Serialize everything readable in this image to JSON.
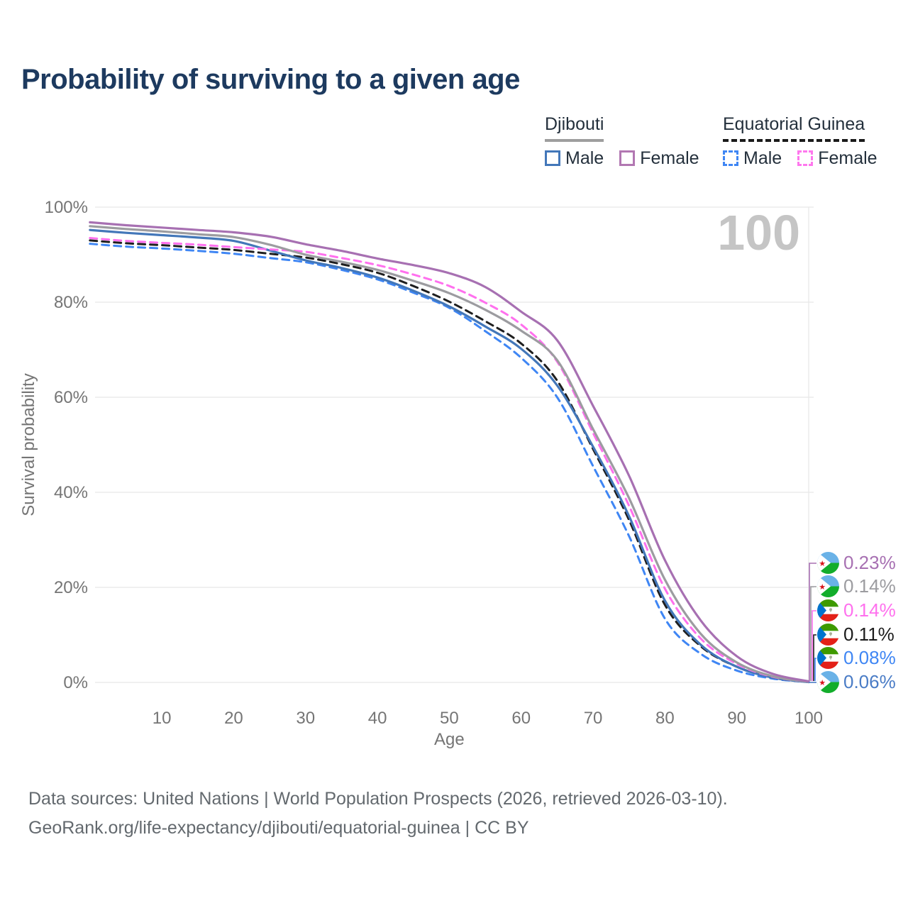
{
  "title": "Probability of surviving to a given age",
  "age_counter": "100",
  "legend": {
    "groups": [
      {
        "name": "Djibouti",
        "line_style": "solid",
        "underline_color": "#9e9e9e",
        "items": [
          {
            "label": "Male",
            "color": "#4377b9"
          },
          {
            "label": "Female",
            "color": "#b277b2"
          }
        ]
      },
      {
        "name": "Equatorial Guinea",
        "line_style": "dashed",
        "underline_color": "#1b1b1b",
        "items": [
          {
            "label": "Male",
            "color": "#3f86f4"
          },
          {
            "label": "Female",
            "color": "#ff77ee"
          }
        ]
      }
    ]
  },
  "chart_data": {
    "type": "line",
    "title": "Probability of surviving to a given age",
    "xlabel": "Age",
    "ylabel": "Survival probability",
    "xlim": [
      0,
      100
    ],
    "ylim": [
      0,
      100
    ],
    "grid": "horizontal",
    "legend_position": "top-right",
    "x_ticks": [
      10,
      20,
      30,
      40,
      50,
      60,
      70,
      80,
      90,
      100
    ],
    "y_ticks": [
      {
        "value": 0,
        "label": "0%"
      },
      {
        "value": 20,
        "label": "20%"
      },
      {
        "value": 40,
        "label": "40%"
      },
      {
        "value": 60,
        "label": "60%"
      },
      {
        "value": 80,
        "label": "80%"
      },
      {
        "value": 100,
        "label": "100%"
      }
    ],
    "x": [
      0,
      5,
      10,
      15,
      20,
      25,
      30,
      35,
      40,
      45,
      50,
      55,
      60,
      65,
      70,
      75,
      80,
      85,
      90,
      95,
      100
    ],
    "series": [
      {
        "name": "Equatorial Guinea Male",
        "country": "Equatorial Guinea",
        "sex": "Male",
        "color": "#3f86f4",
        "dash": true,
        "values": [
          92.3,
          91.7,
          91.3,
          90.8,
          90.2,
          89.3,
          88.4,
          86.8,
          84.8,
          82.0,
          78.8,
          73.9,
          68.3,
          60.0,
          45.5,
          30.8,
          13.4,
          6.0,
          2.5,
          0.8,
          0.08
        ],
        "end_label": "0.08%"
      },
      {
        "name": "Equatorial Guinea All",
        "country": "Equatorial Guinea",
        "sex": "Both",
        "color": "#1e1e1e",
        "dash": true,
        "values": [
          93.0,
          92.4,
          92.0,
          91.5,
          91.0,
          90.2,
          89.4,
          88.0,
          86.2,
          83.4,
          80.1,
          76.0,
          71.3,
          63.5,
          49.1,
          34.2,
          16.3,
          7.6,
          3.3,
          1.0,
          0.11
        ],
        "end_label": "0.11%"
      },
      {
        "name": "Djibouti Male",
        "country": "Djibouti",
        "sex": "Male",
        "color": "#4377b9",
        "dash": false,
        "values": [
          95.2,
          94.6,
          94.1,
          93.6,
          92.9,
          90.9,
          88.8,
          87.2,
          85.2,
          82.4,
          79.1,
          74.9,
          70.2,
          62.5,
          49.6,
          35.0,
          17.2,
          7.9,
          3.3,
          1.0,
          0.06
        ],
        "end_label": "0.06%"
      },
      {
        "name": "Equatorial Guinea Female",
        "country": "Equatorial Guinea",
        "sex": "Female",
        "color": "#ff70ee",
        "dash": true,
        "values": [
          93.5,
          92.9,
          92.5,
          92.1,
          91.6,
          91.1,
          90.6,
          89.3,
          87.8,
          85.8,
          83.4,
          79.9,
          75.3,
          67.5,
          52.5,
          37.2,
          19.7,
          9.2,
          3.9,
          1.2,
          0.14
        ],
        "end_label": "0.14%"
      },
      {
        "name": "Djibouti All",
        "country": "Djibouti",
        "sex": "Both",
        "color": "#9c9ca0",
        "dash": false,
        "values": [
          96.0,
          95.4,
          94.9,
          94.3,
          93.7,
          92.1,
          90.0,
          88.5,
          86.8,
          84.5,
          81.9,
          78.4,
          74.0,
          67.8,
          53.3,
          38.8,
          21.6,
          10.2,
          4.2,
          1.3,
          0.14
        ],
        "end_label": "0.14%"
      },
      {
        "name": "Djibouti Female",
        "country": "Djibouti",
        "sex": "Female",
        "color": "#a770b2",
        "dash": false,
        "values": [
          96.8,
          96.2,
          95.7,
          95.2,
          94.7,
          93.8,
          92.2,
          90.8,
          89.2,
          87.8,
          86.1,
          83.2,
          78.0,
          72.0,
          58.2,
          43.5,
          25.7,
          13.0,
          5.5,
          1.8,
          0.23
        ],
        "end_label": "0.23%"
      }
    ]
  },
  "end_labels": [
    {
      "country": "Djibouti",
      "value": "0.23%",
      "color": "#a770b2"
    },
    {
      "country": "Djibouti",
      "value": "0.14%",
      "color": "#9c9ca0"
    },
    {
      "country": "Equatorial Guinea",
      "value": "0.14%",
      "color": "#ff70ee"
    },
    {
      "country": "Equatorial Guinea",
      "value": "0.11%",
      "color": "#1b1b1b"
    },
    {
      "country": "Equatorial Guinea",
      "value": "0.08%",
      "color": "#3f86f4"
    },
    {
      "country": "Djibouti",
      "value": "0.06%",
      "color": "#4a7cc6"
    }
  ],
  "flags": {
    "djibouti": {
      "top": "#6ab2e7",
      "bottom": "#12ad2b",
      "triangle": "#ffffff",
      "star": "#d7141a"
    },
    "equatorial_guinea": {
      "stripes": [
        "#3e9a00",
        "#ffffff",
        "#e32118"
      ],
      "triangle": "#0073ce",
      "emblem": "#a8b098"
    }
  },
  "footer": {
    "line1": "Data sources: United Nations | World Population Prospects (2026, retrieved 2026-03-10).",
    "line2": "GeoRank.org/life-expectancy/djibouti/equatorial-guinea | CC BY"
  }
}
